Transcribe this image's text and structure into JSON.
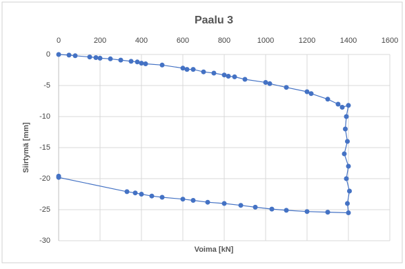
{
  "chart_data": {
    "type": "scatter",
    "title": "Paalu 3",
    "x_label": "Voima [kN]",
    "y_label": "Siirtymä [mm]",
    "series": [
      {
        "color": "#4472c4",
        "x": [
          0,
          50,
          80,
          150,
          180,
          200,
          250,
          300,
          350,
          380,
          400,
          420,
          500,
          600,
          620,
          650,
          700,
          750,
          800,
          820,
          850,
          900,
          1000,
          1020,
          1100,
          1200,
          1220,
          1300,
          1350,
          1370,
          1400,
          1390,
          1385,
          1395,
          1380,
          1400,
          1390,
          1405,
          1395,
          1400,
          1300,
          1200,
          1100,
          1030,
          950,
          880,
          800,
          720,
          650,
          600,
          500,
          450,
          400,
          370,
          330,
          0,
          0
        ],
        "values": [
          0,
          -0.1,
          -0.2,
          -0.4,
          -0.5,
          -0.6,
          -0.7,
          -0.9,
          -1.1,
          -1.2,
          -1.4,
          -1.5,
          -1.7,
          -2.2,
          -2.4,
          -2.4,
          -2.8,
          -3.0,
          -3.3,
          -3.5,
          -3.6,
          -4.0,
          -4.5,
          -4.7,
          -5.3,
          -6.0,
          -6.3,
          -7.2,
          -8.0,
          -8.5,
          -8.2,
          -10,
          -12,
          -14,
          -16,
          -18,
          -20,
          -22,
          -24,
          -25.5,
          -25.4,
          -25.3,
          -25.1,
          -24.9,
          -24.6,
          -24.3,
          -24.0,
          -23.8,
          -23.5,
          -23.3,
          -23.0,
          -22.8,
          -22.5,
          -22.3,
          -22.1,
          -19.8,
          -19.6
        ]
      }
    ],
    "xlim": [
      0,
      1600
    ],
    "xticks": [
      0,
      200,
      400,
      600,
      800,
      1000,
      1200,
      1400,
      1600
    ],
    "ylim": [
      -30,
      0
    ],
    "yticks": [
      0,
      -5,
      -10,
      -15,
      -20,
      -25,
      -30
    ],
    "grid": true
  }
}
